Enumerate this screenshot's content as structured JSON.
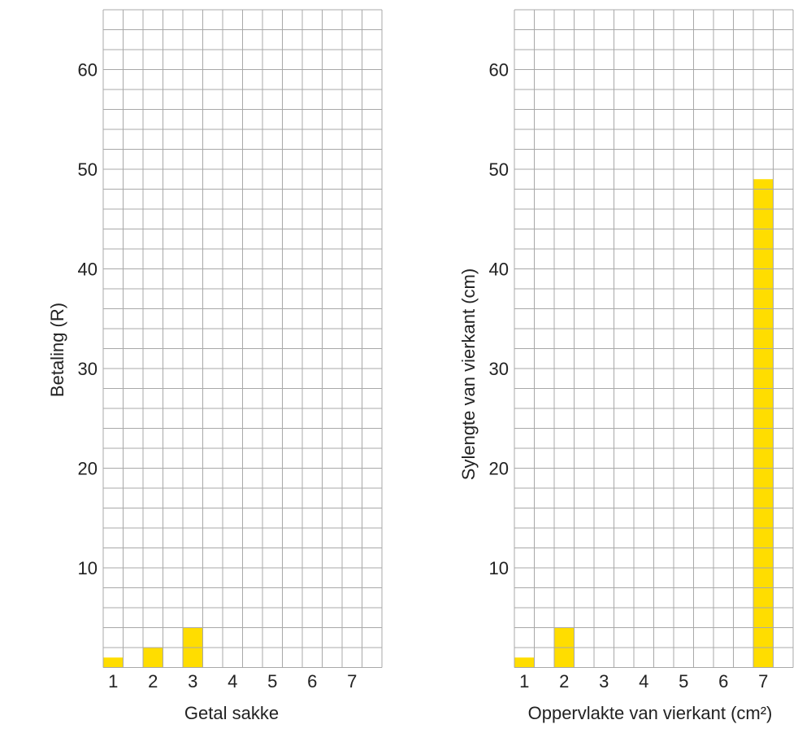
{
  "colors": {
    "bar": "#ffdd00",
    "bar_edge": "#e6c300",
    "grid": "#a8a8a8",
    "text": "#222222"
  },
  "chart_data": [
    {
      "type": "bar",
      "categories": [
        "1",
        "2",
        "3",
        "4",
        "5",
        "6",
        "7"
      ],
      "values": [
        1,
        2,
        4,
        null,
        null,
        null,
        null
      ],
      "xlabel": "Getal sakke",
      "ylabel": "Betaling (R)",
      "ylim": [
        0,
        66
      ],
      "yticks": [
        10,
        20,
        30,
        40,
        50,
        60
      ],
      "grid": true,
      "ytick_labels": [
        "10",
        "20",
        "30",
        "40",
        "50",
        "60"
      ]
    },
    {
      "type": "bar",
      "categories": [
        "1",
        "2",
        "3",
        "4",
        "5",
        "6",
        "7"
      ],
      "values": [
        1,
        4,
        null,
        null,
        null,
        null,
        49
      ],
      "xlabel": "Oppervlakte van vierkant (cm²)",
      "ylabel": "Sylengte van vierkant (cm)",
      "ylim": [
        0,
        66
      ],
      "yticks": [
        10,
        20,
        30,
        40,
        50,
        60
      ],
      "grid": true,
      "ytick_labels": [
        "10",
        "20",
        "30",
        "40",
        "50",
        "60"
      ]
    }
  ]
}
